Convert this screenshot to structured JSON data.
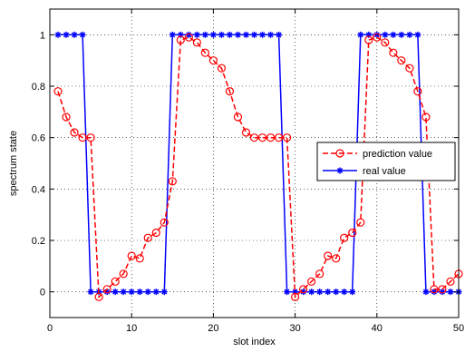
{
  "chart_data": {
    "type": "line",
    "xlabel": "slot index",
    "ylabel": "spectrum state",
    "xlim": [
      0,
      50
    ],
    "ylim": [
      -0.1,
      1.1
    ],
    "xticks": [
      0,
      10,
      20,
      30,
      40,
      50
    ],
    "yticks": [
      0,
      0.2,
      0.4,
      0.6,
      0.8,
      1
    ],
    "xtick_labels": [
      "0",
      "10",
      "20",
      "30",
      "40",
      "50"
    ],
    "ytick_labels": [
      "0",
      "0.2",
      "0.4",
      "0.6",
      "0.8",
      "1"
    ],
    "grid": true,
    "legend_position": "right",
    "series": [
      {
        "name": "prediction value",
        "color": "#ff0000",
        "line_style": "dashed",
        "marker": "circle",
        "x": [
          1,
          2,
          3,
          4,
          5,
          6,
          7,
          8,
          9,
          10,
          11,
          12,
          13,
          14,
          15,
          16,
          17,
          18,
          19,
          20,
          21,
          22,
          23,
          24,
          25,
          26,
          27,
          28,
          29,
          30,
          31,
          32,
          33,
          34,
          35,
          36,
          37,
          38,
          39,
          40,
          41,
          42,
          43,
          44,
          45,
          46,
          47,
          48,
          49,
          50
        ],
        "values": [
          0.78,
          0.68,
          0.62,
          0.6,
          0.6,
          -0.02,
          0.01,
          0.04,
          0.07,
          0.14,
          0.13,
          0.21,
          0.23,
          0.27,
          0.43,
          0.98,
          0.99,
          0.97,
          0.93,
          0.9,
          0.87,
          0.78,
          0.68,
          0.62,
          0.6,
          0.6,
          0.6,
          0.6,
          0.6,
          -0.02,
          0.01,
          0.04,
          0.07,
          0.14,
          0.13,
          0.21,
          0.23,
          0.27,
          0.98,
          0.99,
          0.97,
          0.93,
          0.9,
          0.87,
          0.78,
          0.68,
          0.01,
          0.01,
          0.04,
          0.07
        ]
      },
      {
        "name": "real value",
        "color": "#0000ff",
        "line_style": "solid",
        "marker": "asterisk",
        "x": [
          1,
          2,
          3,
          4,
          5,
          6,
          7,
          8,
          9,
          10,
          11,
          12,
          13,
          14,
          15,
          16,
          17,
          18,
          19,
          20,
          21,
          22,
          23,
          24,
          25,
          26,
          27,
          28,
          29,
          30,
          31,
          32,
          33,
          34,
          35,
          36,
          37,
          38,
          39,
          40,
          41,
          42,
          43,
          44,
          45,
          46,
          47,
          48,
          49,
          50
        ],
        "values": [
          1,
          1,
          1,
          1,
          0,
          0,
          0,
          0,
          0,
          0,
          0,
          0,
          0,
          0,
          1,
          1,
          1,
          1,
          1,
          1,
          1,
          1,
          1,
          1,
          1,
          1,
          1,
          1,
          0,
          0,
          0,
          0,
          0,
          0,
          0,
          0,
          0,
          1,
          1,
          1,
          1,
          1,
          1,
          1,
          1,
          0,
          0,
          0,
          0,
          0
        ]
      }
    ]
  }
}
